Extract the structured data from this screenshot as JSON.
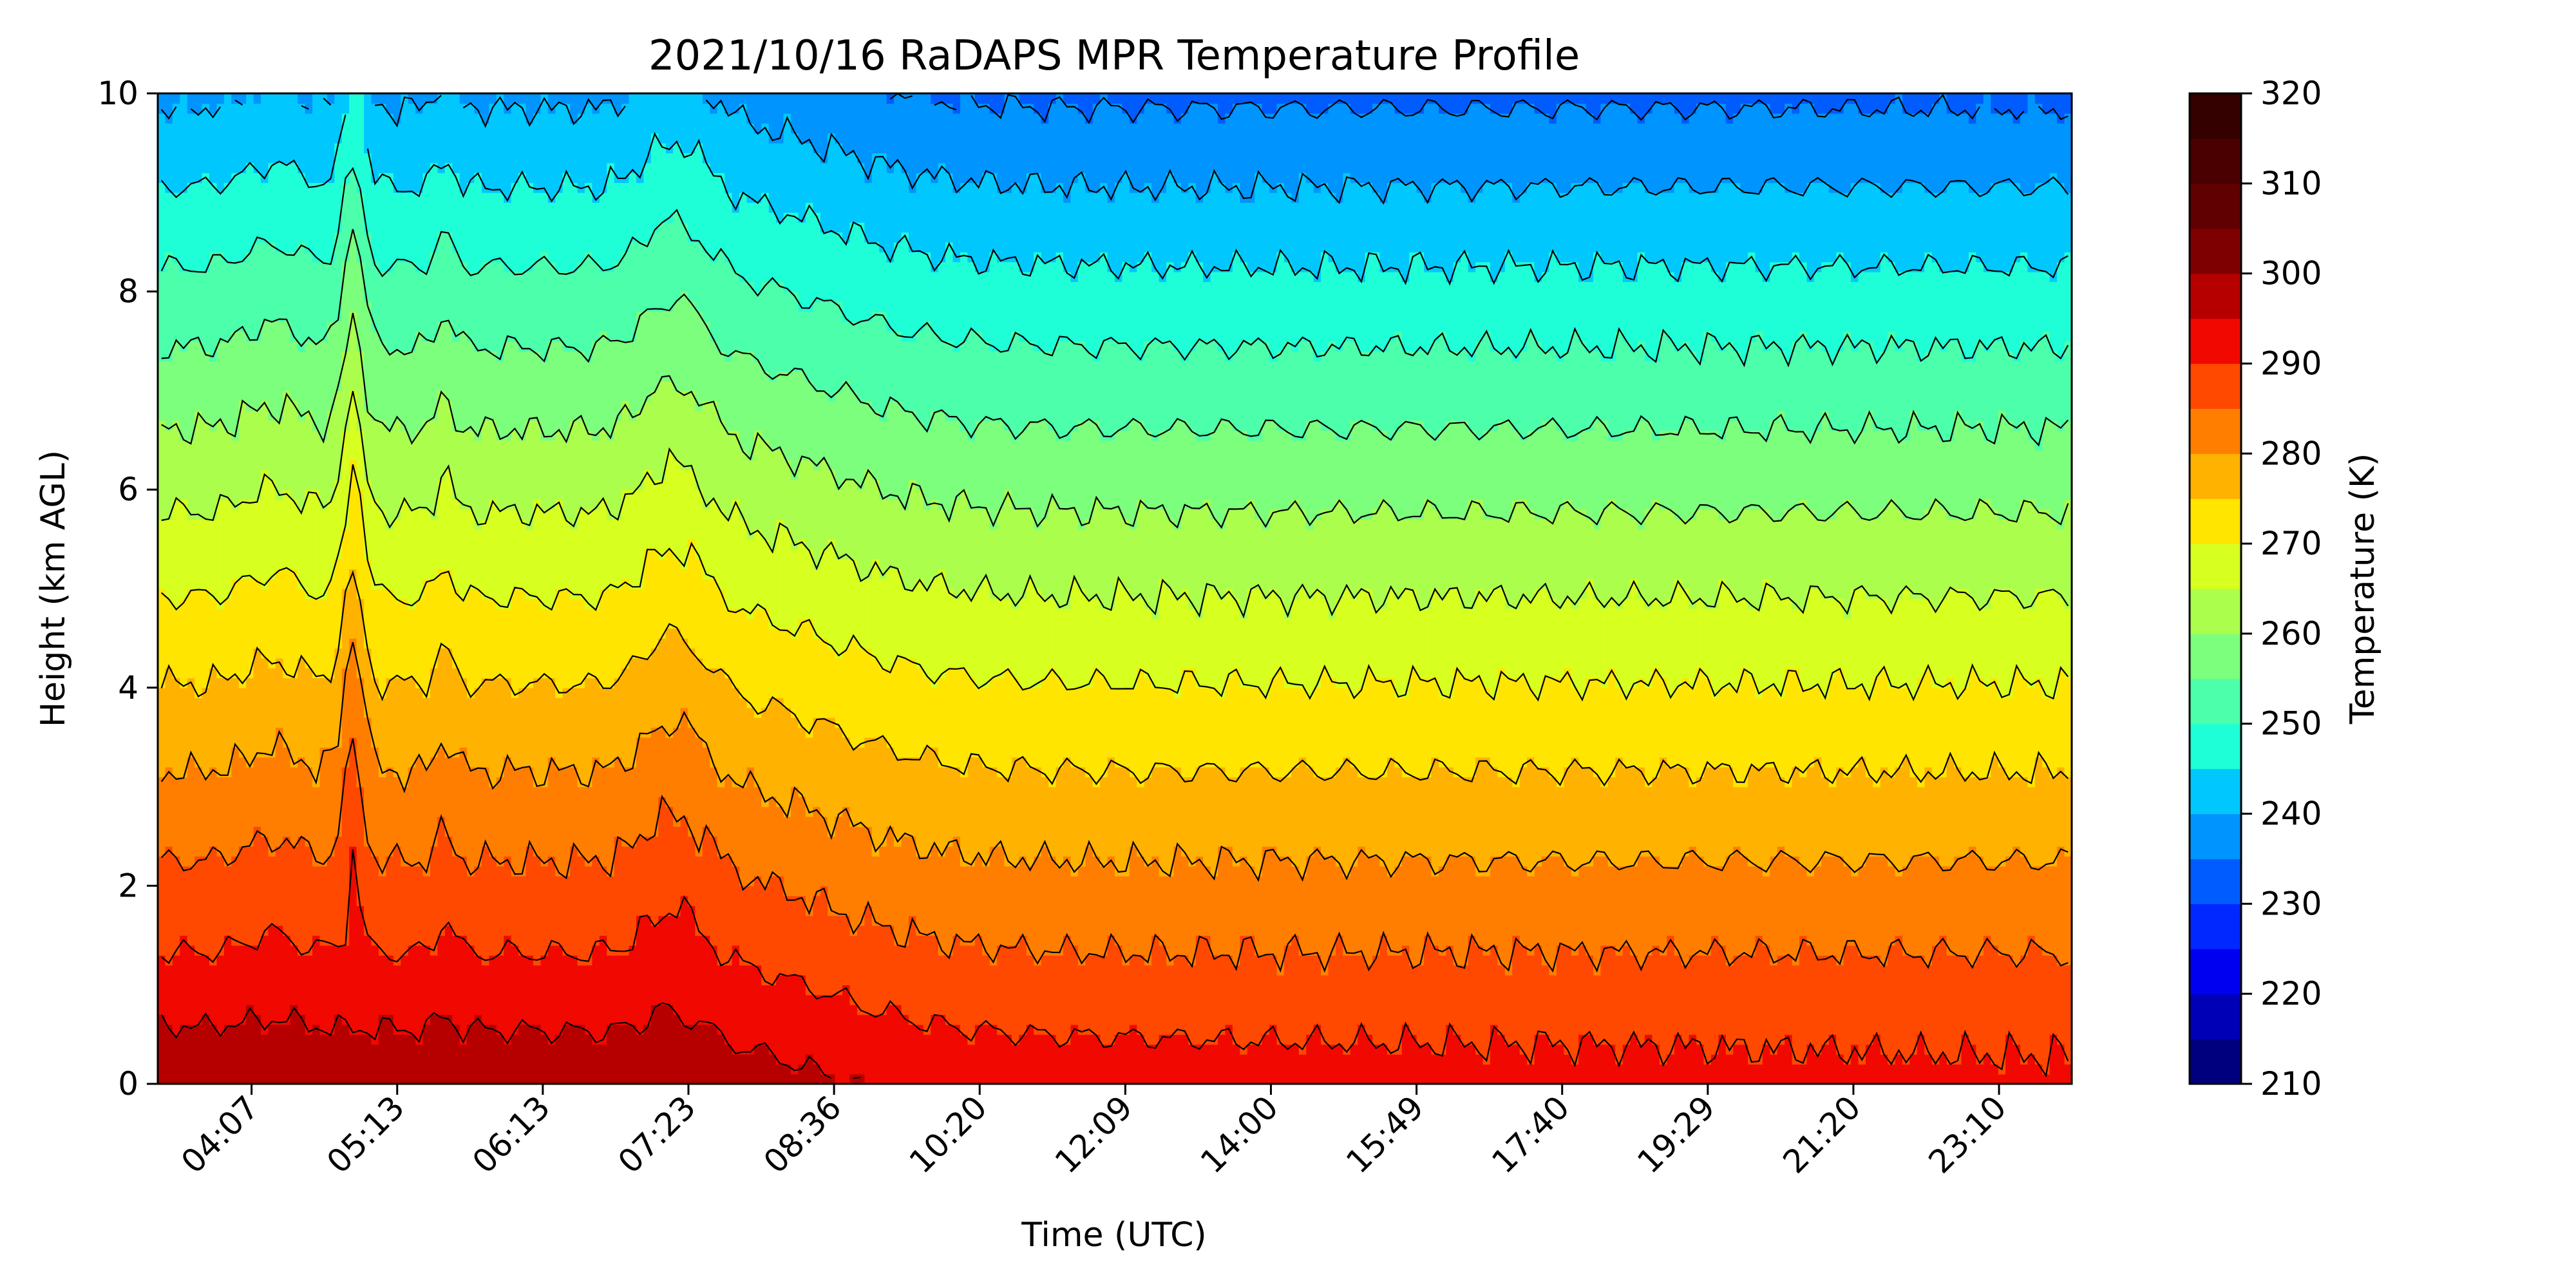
{
  "chart_data": {
    "type": "heatmap",
    "subtype": "filled-contour",
    "title": "2021/10/16 RaDAPS MPR Temperature Profile",
    "xlabel": "Time (UTC)",
    "ylabel": "Height (km AGL)",
    "colorbar_label": "Temperature (K)",
    "x_ticks": [
      "04:07",
      "05:13",
      "06:13",
      "07:23",
      "08:36",
      "10:20",
      "12:09",
      "14:00",
      "15:49",
      "17:40",
      "19:29",
      "21:20",
      "23:10"
    ],
    "y_ticks": [
      "0",
      "2",
      "4",
      "6",
      "8",
      "10"
    ],
    "ylim": [
      0,
      10
    ],
    "colorbar_ticks": [
      "210",
      "220",
      "230",
      "240",
      "250",
      "260",
      "270",
      "280",
      "290",
      "300",
      "310",
      "320"
    ],
    "clim": [
      210,
      320
    ],
    "level_step": 5,
    "colormap": "jet",
    "level_colors": [
      "#00007f",
      "#0000b6",
      "#0000f1",
      "#0028ff",
      "#005cff",
      "#0094ff",
      "#00c8ff",
      "#1fffd7",
      "#4cffab",
      "#7cff7c",
      "#abff4c",
      "#d7ff1f",
      "#ffe500",
      "#ffb200",
      "#ff7e00",
      "#ff4800",
      "#f10800",
      "#b60000",
      "#7f0000",
      "#600000",
      "#4a0000",
      "#350000"
    ],
    "approx_temperature_at_heights": {
      "heights_km": [
        0,
        1,
        2,
        3,
        4,
        5,
        6,
        7,
        8,
        9,
        10
      ],
      "columns": [
        {
          "time": "04:07",
          "values": [
            297,
            292,
            286,
            280,
            273,
            266,
            259,
            252,
            245,
            238,
            231
          ]
        },
        {
          "time": "08:36",
          "values": [
            293,
            290,
            287,
            282,
            276,
            270,
            263,
            256,
            249,
            242,
            236
          ]
        },
        {
          "time": "12:09",
          "values": [
            287,
            282,
            278,
            274,
            269,
            264,
            258,
            252,
            246,
            240,
            234
          ]
        },
        {
          "time": "23:10",
          "values": [
            288,
            284,
            279,
            275,
            270,
            265,
            259,
            253,
            246,
            240,
            233
          ]
        }
      ]
    }
  }
}
